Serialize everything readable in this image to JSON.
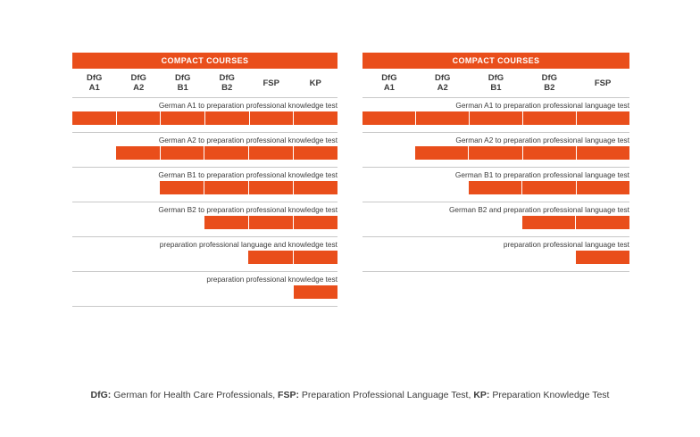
{
  "panels": [
    {
      "header": "COMPACT COURSES",
      "columns": [
        "DfG\nA1",
        "DfG\nA2",
        "DfG\nB1",
        "DfG\nB2",
        "FSP",
        "KP"
      ],
      "courses": [
        {
          "label": "German A1 to preparation professional knowledge test",
          "start": 0,
          "end": 5
        },
        {
          "label": "German A2 to preparation professional knowledge test",
          "start": 1,
          "end": 5
        },
        {
          "label": "German B1 to preparation professional knowledge test",
          "start": 2,
          "end": 5
        },
        {
          "label": "German B2 to preparation professional knowledge test",
          "start": 3,
          "end": 5
        },
        {
          "label": "preparation professional language and knowledge test",
          "start": 4,
          "end": 5
        },
        {
          "label": "preparation professional knowledge test",
          "start": 5,
          "end": 5
        }
      ]
    },
    {
      "header": "COMPACT COURSES",
      "columns": [
        "DfG\nA1",
        "DfG\nA2",
        "DfG\nB1",
        "DfG\nB2",
        "FSP"
      ],
      "courses": [
        {
          "label": "German A1 to preparation professional language test",
          "start": 0,
          "end": 4
        },
        {
          "label": "German A2 to preparation professional language test",
          "start": 1,
          "end": 4
        },
        {
          "label": "German B1 to preparation professional language test",
          "start": 2,
          "end": 4
        },
        {
          "label": "German B2 and preparation professional language test",
          "start": 3,
          "end": 4
        },
        {
          "label": "preparation professional language test",
          "start": 4,
          "end": 4
        }
      ]
    }
  ],
  "footnote": [
    {
      "abbr": "DfG:",
      "text": " German for Health Care Professionals, "
    },
    {
      "abbr": "FSP:",
      "text": " Preparation Professional Language Test, "
    },
    {
      "abbr": "KP:",
      "text": " Preparation Knowledge Test"
    }
  ],
  "colors": {
    "accent": "#e94e1b",
    "text": "#3c3c3c",
    "rule": "#c8c8c8"
  }
}
